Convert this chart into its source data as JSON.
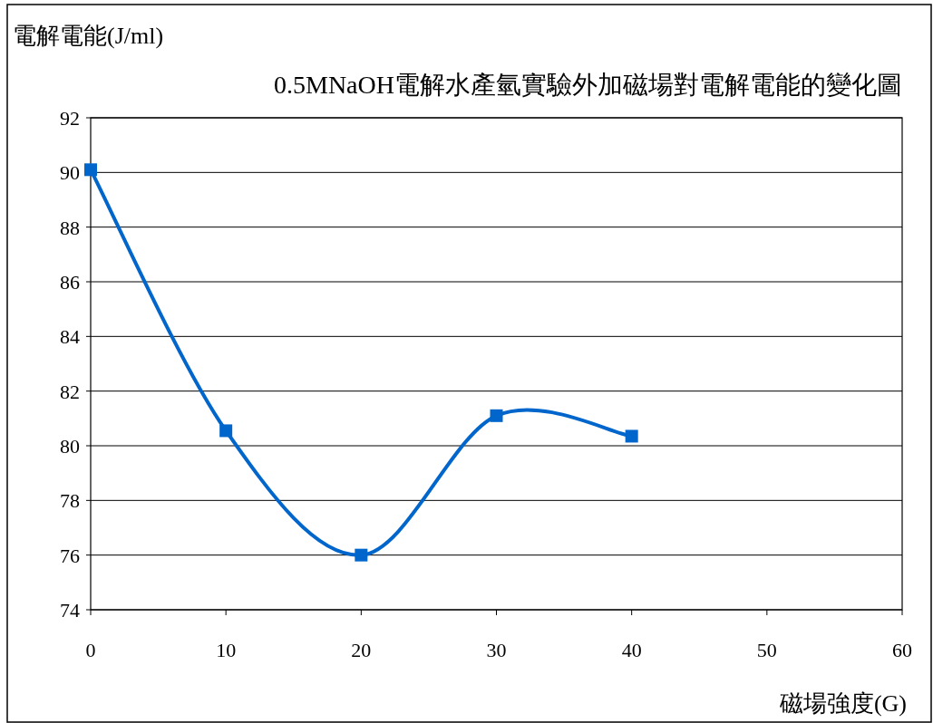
{
  "chart_data": {
    "type": "line",
    "title": "0.5MNaOH電解水產氫實驗外加磁場對電解電能的變化圖",
    "xlabel": "磁場強度(G)",
    "ylabel": "電解電能(J/ml)",
    "x": [
      0,
      10,
      20,
      30,
      40
    ],
    "series": [
      {
        "color": "#0066cc",
        "values": [
          90.1,
          80.55,
          76.0,
          81.1,
          80.35
        ]
      }
    ],
    "xlim": [
      0,
      60
    ],
    "xticks": [
      0,
      10,
      20,
      30,
      40,
      50,
      60
    ],
    "ylim": [
      74,
      92
    ],
    "yticks": [
      74,
      76,
      78,
      80,
      82,
      84,
      86,
      88,
      90,
      92
    ],
    "grid": "y",
    "marker": "square",
    "line_style": "solid"
  }
}
